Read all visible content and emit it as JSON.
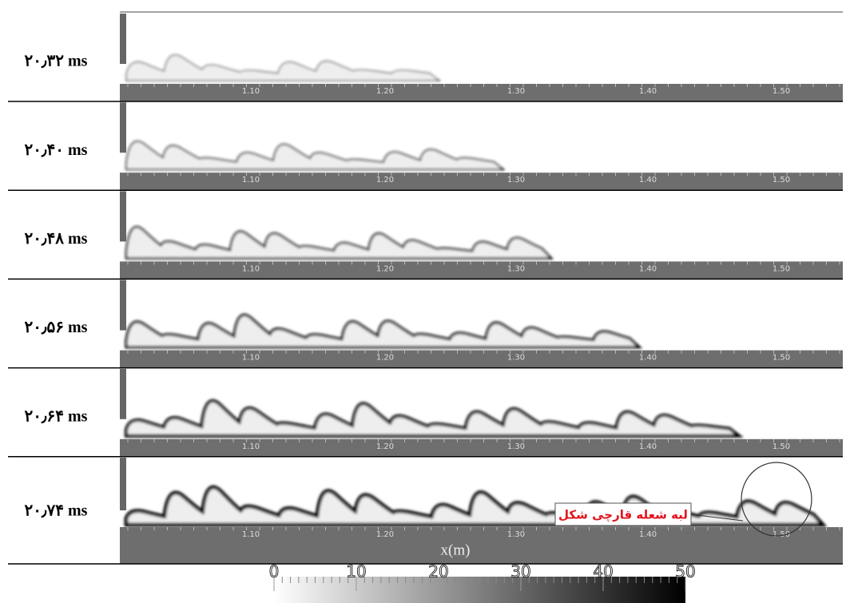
{
  "panels": [
    {
      "time": "۲۰٫۳۲ ms"
    },
    {
      "time": "۲۰٫۴۰ ms"
    },
    {
      "time": "۲۰٫۴۸ ms"
    },
    {
      "time": "۲۰٫۵۶ ms"
    },
    {
      "time": "۲۰٫۶۴ ms"
    },
    {
      "time": "۲۰٫۷۴ ms"
    }
  ],
  "axis": {
    "ticks": [
      "1.10",
      "1.20",
      "1.30",
      "1.40",
      "1.50"
    ],
    "label": "x(m)"
  },
  "colorbar": {
    "ticks": [
      0,
      10,
      20,
      30,
      40,
      50
    ]
  },
  "annotation": "لبه شعله قارچی شکل"
}
